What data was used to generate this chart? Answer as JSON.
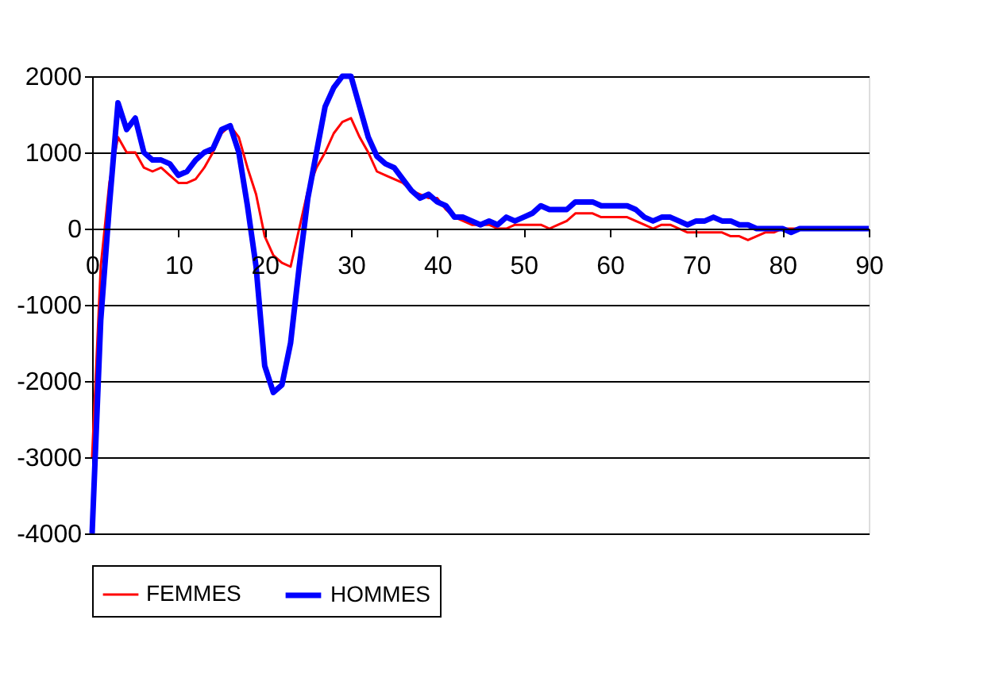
{
  "chart_data": {
    "type": "line",
    "x": [
      0,
      1,
      2,
      3,
      4,
      5,
      6,
      7,
      8,
      9,
      10,
      11,
      12,
      13,
      14,
      15,
      16,
      17,
      18,
      19,
      20,
      21,
      22,
      23,
      24,
      25,
      26,
      27,
      28,
      29,
      30,
      31,
      32,
      33,
      34,
      35,
      36,
      37,
      38,
      39,
      40,
      41,
      42,
      43,
      44,
      45,
      46,
      47,
      48,
      49,
      50,
      51,
      52,
      53,
      54,
      55,
      56,
      57,
      58,
      59,
      60,
      61,
      62,
      63,
      64,
      65,
      66,
      67,
      68,
      69,
      70,
      71,
      72,
      73,
      74,
      75,
      76,
      77,
      78,
      79,
      80,
      81,
      82,
      90
    ],
    "series": [
      {
        "name": "FEMMES",
        "color": "#ff0000",
        "values": [
          -3000,
          -500,
          600,
          1200,
          1000,
          1000,
          800,
          750,
          800,
          700,
          600,
          600,
          650,
          800,
          1000,
          1250,
          1350,
          1200,
          800,
          450,
          -100,
          -350,
          -450,
          -500,
          0,
          500,
          800,
          1000,
          1250,
          1400,
          1450,
          1200,
          1000,
          750,
          700,
          650,
          600,
          500,
          450,
          400,
          400,
          250,
          150,
          100,
          50,
          50,
          50,
          0,
          0,
          50,
          50,
          50,
          50,
          0,
          50,
          100,
          200,
          200,
          200,
          150,
          150,
          150,
          150,
          100,
          50,
          0,
          50,
          50,
          0,
          -50,
          -50,
          -50,
          -50,
          -50,
          -100,
          -100,
          -150,
          -100,
          -50,
          -50,
          0,
          0,
          0,
          0
        ]
      },
      {
        "name": "HOMMES",
        "color": "#0000ff",
        "values": [
          -4000,
          -1200,
          300,
          1650,
          1300,
          1450,
          1000,
          900,
          900,
          850,
          700,
          750,
          900,
          1000,
          1050,
          1300,
          1350,
          1000,
          300,
          -500,
          -1800,
          -2150,
          -2050,
          -1500,
          -500,
          400,
          1000,
          1600,
          1850,
          2000,
          2000,
          1600,
          1200,
          950,
          850,
          800,
          650,
          500,
          400,
          450,
          350,
          300,
          150,
          150,
          100,
          50,
          100,
          50,
          150,
          100,
          150,
          200,
          300,
          250,
          250,
          250,
          350,
          350,
          350,
          300,
          300,
          300,
          300,
          250,
          150,
          100,
          150,
          150,
          100,
          50,
          100,
          100,
          150,
          100,
          100,
          50,
          50,
          0,
          0,
          0,
          0,
          -50,
          0,
          0
        ]
      }
    ],
    "xlim": [
      0,
      90
    ],
    "xticks": [
      0,
      10,
      20,
      30,
      40,
      50,
      60,
      70,
      80,
      90
    ],
    "ylim": [
      -4000,
      2000
    ],
    "yticks": [
      -4000,
      -3000,
      -2000,
      -1000,
      0,
      1000,
      2000
    ],
    "grid": "y",
    "legend": "bottom"
  }
}
